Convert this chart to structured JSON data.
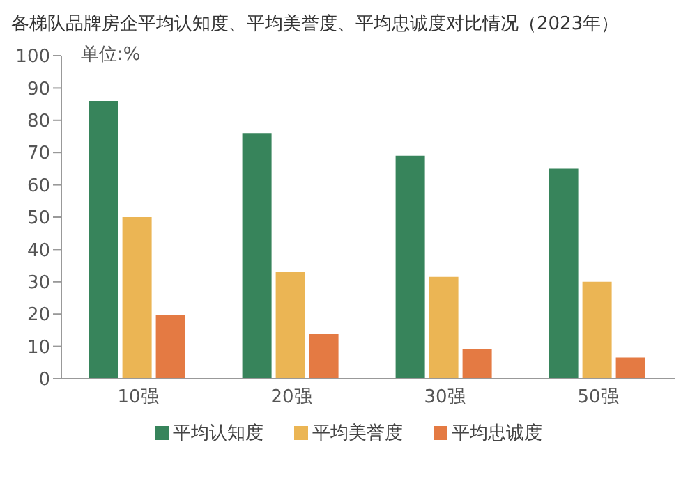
{
  "chart_data": {
    "type": "bar",
    "title": "各梯队品牌房企平均认知度、平均美誉度、平均忠诚度对比情况（2023年）",
    "annotations": [
      "单位:%"
    ],
    "categories": [
      "10强",
      "20强",
      "30强",
      "50强"
    ],
    "series": [
      {
        "name": "平均认知度",
        "color": "#37845b",
        "values": [
          86,
          76,
          69,
          65
        ]
      },
      {
        "name": "平均美誉度",
        "color": "#ebb554",
        "values": [
          50,
          33,
          31.5,
          30
        ]
      },
      {
        "name": "平均忠诚度",
        "color": "#e47a43",
        "values": [
          19.7,
          13.8,
          9.2,
          6.6
        ]
      }
    ],
    "ylim": [
      0,
      100
    ],
    "yticks": [
      0,
      10,
      20,
      30,
      40,
      50,
      60,
      70,
      80,
      90,
      100
    ],
    "grid": false,
    "legend": "bottom"
  }
}
